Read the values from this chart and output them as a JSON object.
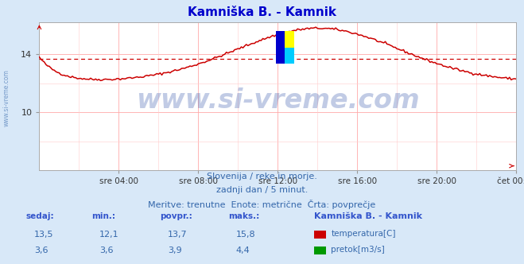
{
  "title": "Kamniška B. - Kamnik",
  "bg_color": "#d8e8f8",
  "plot_bg_color": "#ffffff",
  "grid_color": "#ffaaaa",
  "x_labels": [
    "sre 04:00",
    "sre 08:00",
    "sre 12:00",
    "sre 16:00",
    "sre 20:00",
    "čet 00:00"
  ],
  "x_ticks_norm": [
    0.1667,
    0.3333,
    0.5,
    0.6667,
    0.8333,
    1.0
  ],
  "y_min": 6.0,
  "y_max": 16.2,
  "y_ticks": [
    10,
    14
  ],
  "temp_avg": 13.7,
  "flow_avg": 3.9,
  "temp_color": "#cc0000",
  "flow_color": "#009900",
  "watermark_text": "www.si-vreme.com",
  "watermark_color": "#3355aa",
  "watermark_alpha": 0.3,
  "subtitle1": "Slovenija / reke in morje.",
  "subtitle2": "zadnji dan / 5 minut.",
  "subtitle3": "Meritve: trenutne  Enote: metrične  Črta: povprečje",
  "subtitle_color": "#3366aa",
  "table_header_color": "#3355cc",
  "table_val_color": "#3366aa",
  "n_points": 289,
  "temp_min": 12.1,
  "temp_max": 15.8,
  "temp_now": 13.5,
  "flow_min": 3.6,
  "flow_max": 4.4,
  "flow_now": 3.6,
  "side_label": "www.si-vreme.com"
}
